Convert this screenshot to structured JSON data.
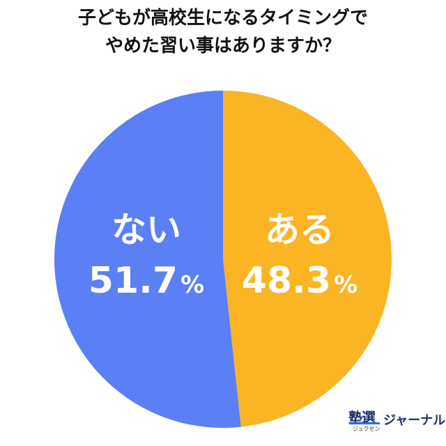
{
  "title": {
    "line1": "子どもが高校生になるタイミングで",
    "line2": "やめた習い事はありますか？"
  },
  "chart_data": {
    "type": "pie",
    "title": "子どもが高校生になるタイミングでやめた習い事はありますか？",
    "slices": [
      {
        "label": "ある",
        "value": 48.3,
        "display": "48.3",
        "color": "#fbb424"
      },
      {
        "label": "ない",
        "value": 51.7,
        "display": "51.7",
        "color": "#5b7ff5"
      }
    ],
    "unit": "%",
    "start": "12 o'clock",
    "direction": "clockwise"
  },
  "brand": {
    "kanji": "塾選",
    "kana": "ジュクセン",
    "word": "ジャーナル"
  }
}
